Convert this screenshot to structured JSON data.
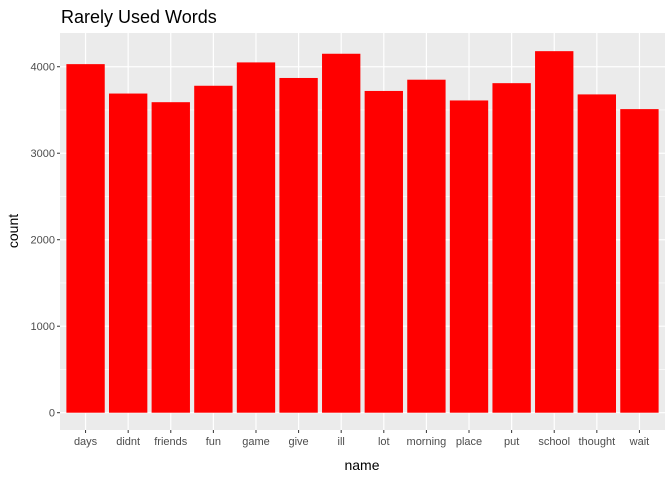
{
  "chart_data": {
    "type": "bar",
    "title": "Rarely Used Words",
    "xlabel": "name",
    "ylabel": "count",
    "categories": [
      "days",
      "didnt",
      "friends",
      "fun",
      "game",
      "give",
      "ill",
      "lot",
      "morning",
      "place",
      "put",
      "school",
      "thought",
      "wait"
    ],
    "values": [
      4030,
      3690,
      3590,
      3780,
      4050,
      3870,
      4150,
      3720,
      3850,
      3610,
      3810,
      4180,
      3680,
      3510
    ],
    "ylim": [
      -200,
      4390
    ],
    "yticks": [
      0,
      1000,
      2000,
      3000,
      4000
    ],
    "grid": true,
    "bar_color": "#ff0000",
    "panel_color": "#ebebeb",
    "grid_color": "#ffffff"
  }
}
